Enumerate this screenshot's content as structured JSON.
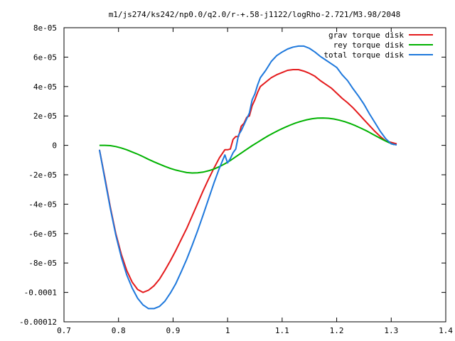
{
  "chart_data": {
    "type": "line",
    "title": "m1/js274/ks242/np0.0/q2.0/r-+.58-j1122/logRho-2.721/M3.98/2048",
    "xlabel": "",
    "ylabel": "",
    "xlim": [
      0.7,
      1.4
    ],
    "ylim": [
      -0.00012,
      8e-05
    ],
    "x_ticks": [
      {
        "value": 0.7,
        "label": "0.7"
      },
      {
        "value": 0.8,
        "label": "0.8"
      },
      {
        "value": 0.9,
        "label": "0.9"
      },
      {
        "value": 1.0,
        "label": "1"
      },
      {
        "value": 1.1,
        "label": "1.1"
      },
      {
        "value": 1.2,
        "label": "1.2"
      },
      {
        "value": 1.3,
        "label": "1.3"
      },
      {
        "value": 1.4,
        "label": "1.4"
      }
    ],
    "y_ticks": [
      {
        "value": 8e-05,
        "label": "8e-05"
      },
      {
        "value": 6e-05,
        "label": "6e-05"
      },
      {
        "value": 4e-05,
        "label": "4e-05"
      },
      {
        "value": 2e-05,
        "label": "2e-05"
      },
      {
        "value": 0,
        "label": "0"
      },
      {
        "value": -2e-05,
        "label": "-2e-05"
      },
      {
        "value": -4e-05,
        "label": "-4e-05"
      },
      {
        "value": -6e-05,
        "label": "-6e-05"
      },
      {
        "value": -8e-05,
        "label": "-8e-05"
      },
      {
        "value": -0.0001,
        "label": "-0.0001"
      },
      {
        "value": -0.00012,
        "label": "-0.00012"
      }
    ],
    "grid": false,
    "legend_position": "top-right",
    "series": [
      {
        "name": "grav torque disk",
        "color": "#e41a1c",
        "x": [
          0.765,
          0.775,
          0.785,
          0.795,
          0.805,
          0.815,
          0.825,
          0.835,
          0.845,
          0.855,
          0.865,
          0.875,
          0.885,
          0.895,
          0.905,
          0.915,
          0.925,
          0.935,
          0.945,
          0.955,
          0.965,
          0.975,
          0.985,
          0.995,
          1.0,
          1.005,
          1.01,
          1.015,
          1.02,
          1.025,
          1.03,
          1.035,
          1.04,
          1.045,
          1.05,
          1.055,
          1.06,
          1.07,
          1.08,
          1.09,
          1.1,
          1.11,
          1.12,
          1.13,
          1.14,
          1.15,
          1.16,
          1.17,
          1.18,
          1.19,
          1.2,
          1.21,
          1.22,
          1.23,
          1.24,
          1.25,
          1.26,
          1.27,
          1.28,
          1.29,
          1.3,
          1.31
        ],
        "y": [
          -3e-06,
          -2.2e-05,
          -4.2e-05,
          -6e-05,
          -7.4e-05,
          -8.5e-05,
          -9.3e-05,
          -9.8e-05,
          -0.0001,
          -9.85e-05,
          -9.55e-05,
          -9.1e-05,
          -8.5e-05,
          -7.85e-05,
          -7.15e-05,
          -6.4e-05,
          -5.65e-05,
          -4.8e-05,
          -3.95e-05,
          -3.1e-05,
          -2.3e-05,
          -1.55e-05,
          -8.5e-06,
          -3e-06,
          -3e-06,
          -2.5e-06,
          4e-06,
          6e-06,
          6e-06,
          1.3e-05,
          1.5e-05,
          1.9e-05,
          2e-05,
          2.7e-05,
          3.1e-05,
          3.6e-05,
          4e-05,
          4.3e-05,
          4.6e-05,
          4.8e-05,
          4.95e-05,
          5.1e-05,
          5.15e-05,
          5.15e-05,
          5.05e-05,
          4.9e-05,
          4.7e-05,
          4.4e-05,
          4.15e-05,
          3.9e-05,
          3.55e-05,
          3.2e-05,
          2.9e-05,
          2.55e-05,
          2.15e-05,
          1.75e-05,
          1.35e-05,
          9.5e-06,
          6e-06,
          3e-06,
          2e-06,
          1e-06
        ]
      },
      {
        "name": "rey torque disk",
        "color": "#00b200",
        "x": [
          0.765,
          0.775,
          0.785,
          0.795,
          0.805,
          0.815,
          0.825,
          0.835,
          0.845,
          0.855,
          0.865,
          0.875,
          0.885,
          0.895,
          0.905,
          0.915,
          0.925,
          0.935,
          0.945,
          0.955,
          0.965,
          0.975,
          0.985,
          0.995,
          1.005,
          1.015,
          1.025,
          1.035,
          1.045,
          1.055,
          1.065,
          1.075,
          1.085,
          1.095,
          1.105,
          1.115,
          1.125,
          1.135,
          1.145,
          1.155,
          1.165,
          1.175,
          1.185,
          1.195,
          1.205,
          1.215,
          1.225,
          1.235,
          1.245,
          1.255,
          1.265,
          1.275,
          1.285,
          1.295,
          1.305
        ],
        "y": [
          0.0,
          0.0,
          -2e-07,
          -8e-07,
          -1.8e-06,
          -3e-06,
          -4.5e-06,
          -6e-06,
          -7.7e-06,
          -9.5e-06,
          -1.12e-05,
          -1.28e-05,
          -1.43e-05,
          -1.57e-05,
          -1.68e-05,
          -1.77e-05,
          -1.85e-05,
          -1.88e-05,
          -1.87e-05,
          -1.82e-05,
          -1.73e-05,
          -1.61e-05,
          -1.45e-05,
          -1.25e-05,
          -1.03e-05,
          -7.8e-06,
          -5.2e-06,
          -2.7e-06,
          -2e-07,
          2.1e-06,
          4.4e-06,
          6.6e-06,
          8.6e-06,
          1.05e-05,
          1.22e-05,
          1.38e-05,
          1.52e-05,
          1.64e-05,
          1.74e-05,
          1.81e-05,
          1.85e-05,
          1.86e-05,
          1.84e-05,
          1.79e-05,
          1.71e-05,
          1.61e-05,
          1.48e-05,
          1.33e-05,
          1.16e-05,
          9.8e-06,
          7.8e-06,
          5.8e-06,
          3.8e-06,
          2e-06,
          5e-07
        ]
      },
      {
        "name": "total torque disk",
        "color": "#1e78dc",
        "x": [
          0.765,
          0.775,
          0.785,
          0.795,
          0.805,
          0.815,
          0.825,
          0.835,
          0.845,
          0.855,
          0.865,
          0.875,
          0.885,
          0.895,
          0.905,
          0.915,
          0.925,
          0.935,
          0.945,
          0.955,
          0.965,
          0.975,
          0.985,
          0.995,
          1.0,
          1.005,
          1.01,
          1.015,
          1.02,
          1.025,
          1.03,
          1.035,
          1.04,
          1.045,
          1.05,
          1.055,
          1.06,
          1.07,
          1.08,
          1.09,
          1.1,
          1.11,
          1.12,
          1.13,
          1.14,
          1.15,
          1.16,
          1.17,
          1.18,
          1.19,
          1.2,
          1.21,
          1.22,
          1.23,
          1.24,
          1.25,
          1.26,
          1.27,
          1.28,
          1.29,
          1.3,
          1.31
        ],
        "y": [
          -3e-06,
          -2.3e-05,
          -4.3e-05,
          -6.1e-05,
          -7.6e-05,
          -8.8e-05,
          -9.7e-05,
          -0.000104,
          -0.0001085,
          -0.000111,
          -0.000111,
          -0.0001095,
          -0.000106,
          -0.0001005,
          -9.4e-05,
          -8.6e-05,
          -7.75e-05,
          -6.8e-05,
          -5.8e-05,
          -4.75e-05,
          -3.65e-05,
          -2.55e-05,
          -1.55e-05,
          -6.5e-06,
          -1.2e-05,
          -9e-06,
          -5e-06,
          -2.5e-06,
          7e-06,
          1e-05,
          1.4e-05,
          1.8e-05,
          2.2e-05,
          3.1e-05,
          3.5e-05,
          4.1e-05,
          4.6e-05,
          5.1e-05,
          5.7e-05,
          6.1e-05,
          6.35e-05,
          6.55e-05,
          6.68e-05,
          6.75e-05,
          6.75e-05,
          6.6e-05,
          6.35e-05,
          6.05e-05,
          5.8e-05,
          5.55e-05,
          5.3e-05,
          4.8e-05,
          4.4e-05,
          3.85e-05,
          3.35e-05,
          2.8e-05,
          2.15e-05,
          1.55e-05,
          9.5e-06,
          4.5e-06,
          1e-06,
          3e-07
        ]
      }
    ]
  }
}
